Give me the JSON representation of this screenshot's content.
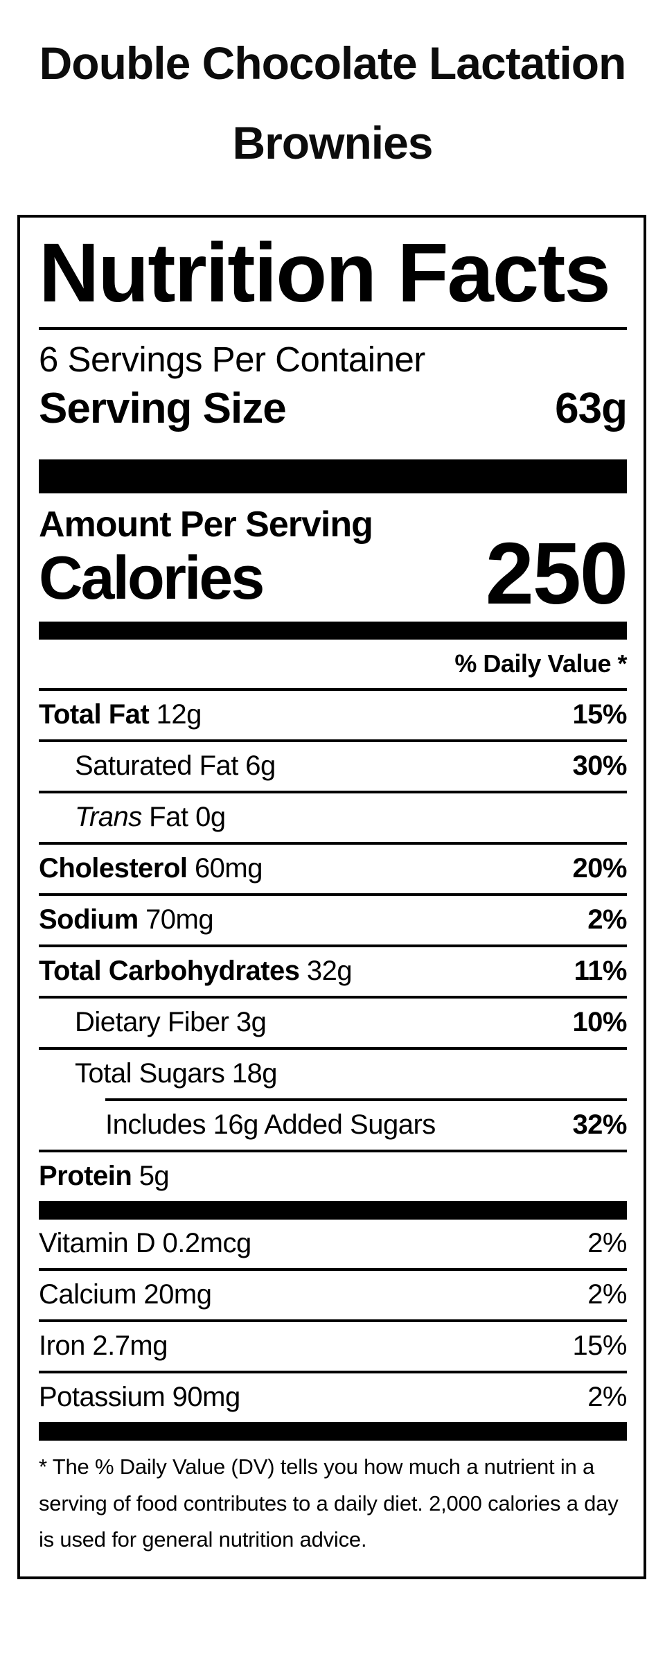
{
  "title": {
    "line1": "Double Chocolate Lactation",
    "line2": "Brownies"
  },
  "label": {
    "heading": "Nutrition Facts",
    "servings_per_container": "6 Servings Per Container",
    "serving_size": {
      "label": "Serving Size",
      "value": "63g"
    },
    "amount_per_serving": "Amount Per Serving",
    "calories": {
      "label": "Calories",
      "value": "250"
    },
    "daily_value_header": "% Daily Value *",
    "nutrients": [
      {
        "label": "Total Fat",
        "amount": "12g",
        "daily_value": "15%"
      },
      {
        "label": "Saturated Fat",
        "amount": "6g",
        "daily_value": "30%"
      },
      {
        "label": "Trans",
        "amount": "Fat 0g",
        "daily_value": ""
      },
      {
        "label": "Cholesterol",
        "amount": "60mg",
        "daily_value": "20%"
      },
      {
        "label": "Sodium",
        "amount": "70mg",
        "daily_value": "2%"
      },
      {
        "label": "Total Carbohydrates",
        "amount": "32g",
        "daily_value": "11%"
      },
      {
        "label": "Dietary Fiber",
        "amount": "3g",
        "daily_value": "10%"
      },
      {
        "label": "Total Sugars",
        "amount": "18g",
        "daily_value": ""
      },
      {
        "label": "Includes 16g Added Sugars",
        "amount": "",
        "daily_value": "32%"
      },
      {
        "label": "Protein",
        "amount": "5g",
        "daily_value": ""
      }
    ],
    "micronutrients": [
      {
        "label": "Vitamin D",
        "amount": "0.2mcg",
        "daily_value": "2%"
      },
      {
        "label": "Calcium",
        "amount": "20mg",
        "daily_value": "2%"
      },
      {
        "label": "Iron",
        "amount": "2.7mg",
        "daily_value": "15%"
      },
      {
        "label": "Potassium",
        "amount": "90mg",
        "daily_value": "2%"
      }
    ],
    "footnote": "* The % Daily Value (DV) tells you how much a nutrient in a serving of food contributes to a daily diet. 2,000 calories a day is used for general nutrition advice."
  },
  "colors": {
    "text": "#000000",
    "background": "#ffffff",
    "divider": "#000000"
  }
}
